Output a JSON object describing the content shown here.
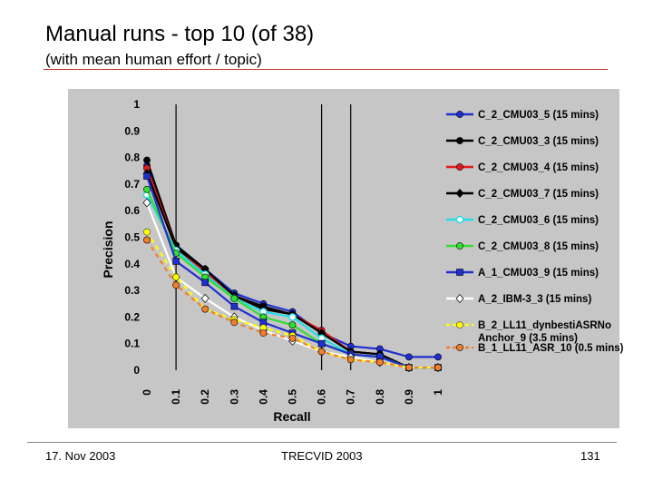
{
  "slide": {
    "title": "Manual runs - top 10 (of 38)",
    "subtitle": "(with mean human effort / topic)",
    "footer_left": "17. Nov 2003",
    "footer_center": "TRECVID 2003",
    "footer_right": "131"
  },
  "chart_data": {
    "type": "line",
    "xlabel": "Recall",
    "ylabel": "Precision",
    "xlim": [
      0,
      1
    ],
    "ylim": [
      0,
      1
    ],
    "x": [
      0,
      0.1,
      0.2,
      0.3,
      0.4,
      0.5,
      0.6,
      0.7,
      0.8,
      0.9,
      1
    ],
    "x_tick_labels": [
      "0",
      "0.1",
      "0.2",
      "0.3",
      "0.4",
      "0.5",
      "0.6",
      "0.7",
      "0.8",
      "0.9",
      "1"
    ],
    "y_tick_labels": [
      "0",
      "0.1",
      "0.2",
      "0.3",
      "0.4",
      "0.5",
      "0.6",
      "0.7",
      "0.8",
      "0.9",
      "1"
    ],
    "vertical_lines_at": [
      0.1,
      0.6,
      0.7
    ],
    "background": "#c6c6c6",
    "legend_position": "right",
    "series": [
      {
        "name": "C_2_CMU03_5 (15 mins)",
        "color": "#1f2fd0",
        "marker": "circle",
        "dashed": false,
        "values": [
          0.77,
          0.47,
          0.38,
          0.29,
          0.25,
          0.22,
          0.14,
          0.09,
          0.08,
          0.05,
          0.05
        ]
      },
      {
        "name": "C_2_CMU03_3 (15 mins)",
        "color": "#000000",
        "marker": "circle",
        "dashed": false,
        "values": [
          0.79,
          0.47,
          0.38,
          0.28,
          0.24,
          0.21,
          0.14,
          0.07,
          0.06,
          0.01,
          0.01
        ]
      },
      {
        "name": "C_2_CMU03_4 (15 mins)",
        "color": "#e01b1b",
        "marker": "circle",
        "dashed": false,
        "values": [
          0.76,
          0.46,
          0.37,
          0.28,
          0.23,
          0.21,
          0.15,
          0.07,
          0.06,
          0.01,
          0.01
        ]
      },
      {
        "name": "C_2_CMU03_7 (15 mins)",
        "color": "#000000",
        "marker": "diamond",
        "dashed": false,
        "values": [
          0.74,
          0.46,
          0.38,
          0.28,
          0.23,
          0.21,
          0.14,
          0.07,
          0.06,
          0.01,
          0.01
        ]
      },
      {
        "name": "C_2_CMU03_6 (15 mins)",
        "color": "#22dde8",
        "marker": "circle-open",
        "dashed": false,
        "values": [
          0.66,
          0.45,
          0.36,
          0.27,
          0.22,
          0.2,
          0.12,
          0.06,
          0.05,
          0.01,
          0.01
        ]
      },
      {
        "name": "C_2_CMU03_8 (15 mins)",
        "color": "#33dd33",
        "marker": "circle",
        "dashed": false,
        "values": [
          0.68,
          0.44,
          0.35,
          0.27,
          0.2,
          0.17,
          0.1,
          0.06,
          0.05,
          0.01,
          0.01
        ]
      },
      {
        "name": "A_1_CMU03_9 (15 mins)",
        "color": "#1f2fd0",
        "marker": "square",
        "dashed": false,
        "values": [
          0.73,
          0.41,
          0.33,
          0.24,
          0.18,
          0.14,
          0.1,
          0.06,
          0.05,
          0.01,
          0.01
        ]
      },
      {
        "name": "A_2_IBM-3_3 (15 mins)",
        "color": "#ffffff",
        "marker": "diamond-open",
        "dashed": false,
        "values": [
          0.63,
          0.35,
          0.27,
          0.2,
          0.15,
          0.11,
          0.07,
          0.05,
          0.03,
          0.01,
          0.01
        ]
      },
      {
        "name": "B_2_LL11_dynbestiASRNo Anchor_9 (3.5 mins)",
        "color": "#ffff00",
        "marker": "circle",
        "dashed": true,
        "values": [
          0.52,
          0.35,
          0.23,
          0.19,
          0.16,
          0.13,
          0.07,
          0.04,
          0.03,
          0.01,
          0.01
        ]
      },
      {
        "name": "B_1_LL11_ASR_10 (0.5 mins)",
        "color": "#f08030",
        "marker": "circle",
        "dashed": true,
        "values": [
          0.49,
          0.32,
          0.23,
          0.18,
          0.14,
          0.12,
          0.07,
          0.04,
          0.03,
          0.01,
          0.01
        ]
      }
    ]
  }
}
